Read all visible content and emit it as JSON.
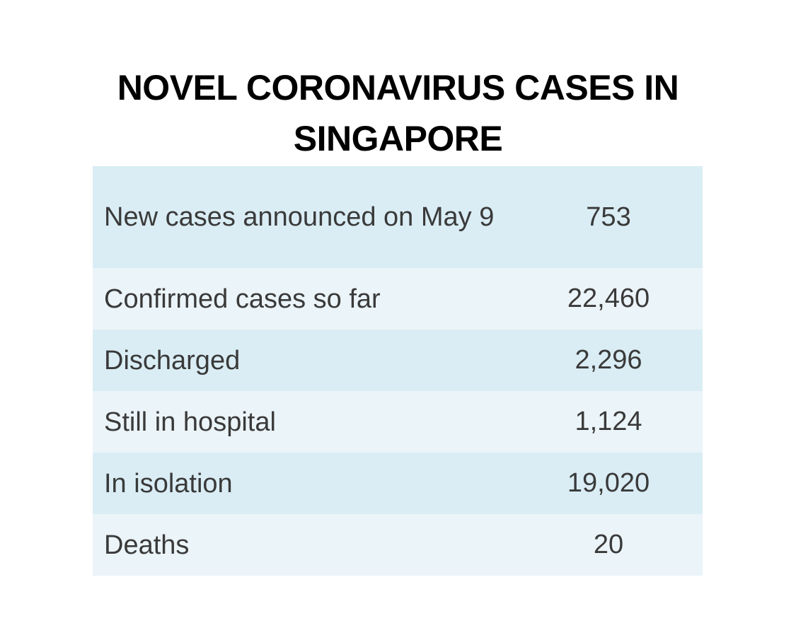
{
  "title": {
    "line1": "NOVEL CORONAVIRUS CASES IN",
    "line2": "SINGAPORE"
  },
  "colors": {
    "row_dark": "#daedf5",
    "row_light": "#ebf4f8",
    "title": "#000000",
    "text": "#3a3a3a"
  },
  "table": {
    "rows": [
      {
        "label": "New cases announced on May 9",
        "value": "753"
      },
      {
        "label": "Confirmed cases so far",
        "value": "22,460"
      },
      {
        "label": "Discharged",
        "value": "2,296"
      },
      {
        "label": "Still in hospital",
        "value": "1,124"
      },
      {
        "label": "In isolation",
        "value": "19,020"
      },
      {
        "label": "Deaths",
        "value": "20"
      }
    ]
  }
}
